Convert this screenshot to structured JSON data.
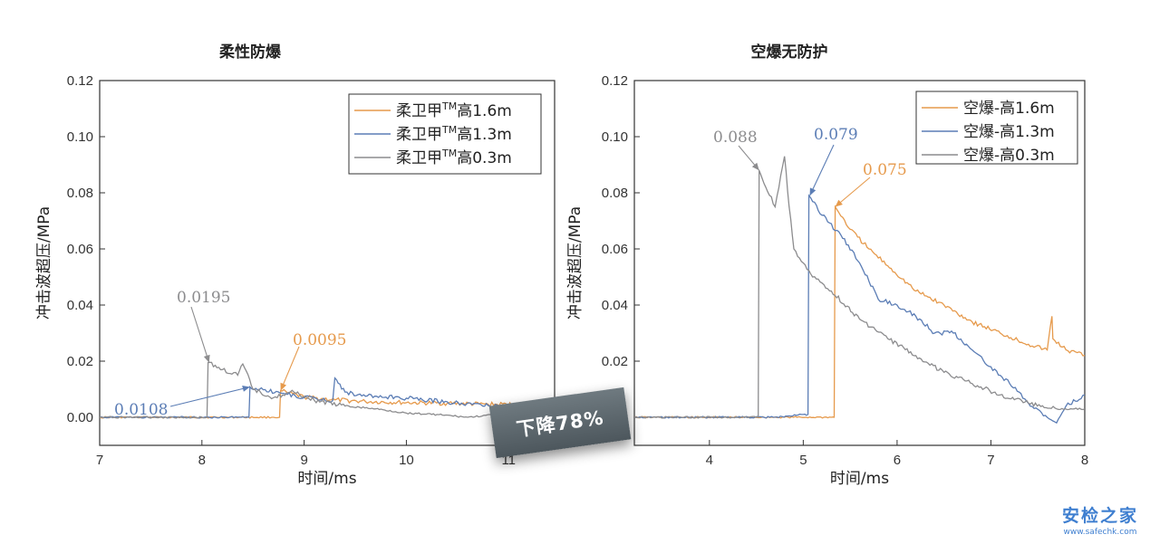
{
  "chart_data": [
    {
      "type": "line",
      "title": "柔性防爆",
      "xlabel": "时间/ms",
      "ylabel": "冲击波超压/MPa",
      "xlim": [
        7,
        11.45
      ],
      "ylim": [
        -0.01,
        0.12
      ],
      "xticks": [
        "7",
        "8",
        "9",
        "10",
        "11"
      ],
      "yticks": [
        "0.00",
        "0.02",
        "0.04",
        "0.06",
        "0.08",
        "0.10",
        "0.12"
      ],
      "legend_position": "top-right",
      "series": [
        {
          "name": "柔卫甲TM高1.6m",
          "color": "#e69a4c",
          "x": [
            7.0,
            8.7,
            8.76,
            8.77,
            8.85,
            9.0,
            9.3,
            9.6,
            10.0,
            10.4,
            10.8,
            11.1,
            11.4
          ],
          "y": [
            0.0,
            0.0,
            0.0,
            0.0095,
            0.0085,
            0.0072,
            0.0062,
            0.0056,
            0.0052,
            0.005,
            0.0046,
            0.0045,
            0.0042
          ]
        },
        {
          "name": "柔卫甲TM高1.3m",
          "color": "#5b7db5",
          "x": [
            7.0,
            8.42,
            8.46,
            8.47,
            8.6,
            8.8,
            9.0,
            9.28,
            9.3,
            9.4,
            9.6,
            9.8,
            10.0,
            10.4,
            10.8,
            11.1,
            11.4
          ],
          "y": [
            0.0,
            0.0,
            0.0,
            0.0108,
            0.0098,
            0.0085,
            0.007,
            0.006,
            0.014,
            0.009,
            0.0075,
            0.0072,
            0.0068,
            0.0055,
            0.0042,
            0.0038,
            0.003
          ]
        },
        {
          "name": "柔卫甲TM高0.3m",
          "color": "#8c8c8e",
          "x": [
            7.0,
            8.0,
            8.05,
            8.06,
            8.2,
            8.35,
            8.4,
            8.5,
            8.7,
            8.9,
            9.1,
            9.4,
            9.7,
            10.0,
            10.3,
            10.6,
            10.9,
            11.2,
            11.4
          ],
          "y": [
            0.0,
            0.0,
            0.0,
            0.0195,
            0.017,
            0.015,
            0.019,
            0.01,
            0.007,
            0.009,
            0.006,
            0.004,
            0.003,
            0.0015,
            0.001,
            0.0,
            0.001,
            0.002,
            0.0018
          ]
        }
      ],
      "annotations": [
        {
          "text": "0.0195",
          "color": "#8c8c8e",
          "x": 8.07,
          "y": 0.0195
        },
        {
          "text": "0.0095",
          "color": "#e69a4c",
          "x": 8.77,
          "y": 0.0095
        },
        {
          "text": "0.0108",
          "color": "#5b7db5",
          "x": 8.47,
          "y": 0.0108
        }
      ]
    },
    {
      "type": "line",
      "title": "空爆无防护",
      "xlabel": "时间/ms",
      "ylabel": "冲击波超压/MPa",
      "xlim": [
        3.2,
        8
      ],
      "ylim": [
        -0.01,
        0.12
      ],
      "xticks": [
        "4",
        "5",
        "6",
        "7",
        "8"
      ],
      "yticks": [
        "0.00",
        "0.02",
        "0.04",
        "0.06",
        "0.08",
        "0.10",
        "0.12"
      ],
      "legend_position": "top-right",
      "series": [
        {
          "name": "空爆-高1.6m",
          "color": "#e69a4c",
          "x": [
            3.2,
            5.3,
            5.33,
            5.34,
            5.5,
            5.7,
            5.9,
            6.2,
            6.5,
            6.8,
            7.1,
            7.4,
            7.6,
            7.65,
            7.66,
            7.8,
            8.0
          ],
          "y": [
            0.0,
            0.0,
            0.0,
            0.075,
            0.067,
            0.06,
            0.054,
            0.045,
            0.04,
            0.034,
            0.03,
            0.026,
            0.024,
            0.036,
            0.028,
            0.024,
            0.022
          ]
        },
        {
          "name": "空爆-高1.3m",
          "color": "#5b7db5",
          "x": [
            3.2,
            4.7,
            5.0,
            5.05,
            5.06,
            5.2,
            5.4,
            5.6,
            5.8,
            6.0,
            6.2,
            6.4,
            6.6,
            6.8,
            7.0,
            7.2,
            7.4,
            7.6,
            7.7,
            7.8,
            8.0
          ],
          "y": [
            0.0,
            0.0,
            0.001,
            0.001,
            0.079,
            0.072,
            0.065,
            0.055,
            0.042,
            0.04,
            0.036,
            0.03,
            0.03,
            0.024,
            0.018,
            0.012,
            0.005,
            0.0,
            -0.002,
            0.004,
            0.008
          ]
        },
        {
          "name": "空爆-高0.3m",
          "color": "#8c8c8e",
          "x": [
            3.2,
            4.5,
            4.52,
            4.53,
            4.6,
            4.7,
            4.8,
            4.85,
            4.9,
            5.0,
            5.1,
            5.3,
            5.6,
            5.9,
            6.2,
            6.5,
            6.8,
            7.1,
            7.4,
            7.7,
            8.0
          ],
          "y": [
            0.0,
            0.0,
            0.0,
            0.088,
            0.082,
            0.075,
            0.093,
            0.075,
            0.06,
            0.055,
            0.05,
            0.045,
            0.035,
            0.028,
            0.022,
            0.016,
            0.012,
            0.008,
            0.005,
            0.003,
            0.003
          ]
        }
      ],
      "annotations": [
        {
          "text": "0.088",
          "color": "#8c8c8e",
          "x": 4.53,
          "y": 0.088
        },
        {
          "text": "0.079",
          "color": "#5b7db5",
          "x": 5.07,
          "y": 0.079
        },
        {
          "text": "0.075",
          "color": "#e69a4c",
          "x": 5.34,
          "y": 0.075
        }
      ]
    }
  ],
  "banner": {
    "text": "下降78%"
  },
  "watermark": {
    "main": "安检之家",
    "sub": "www.safechk.com"
  }
}
